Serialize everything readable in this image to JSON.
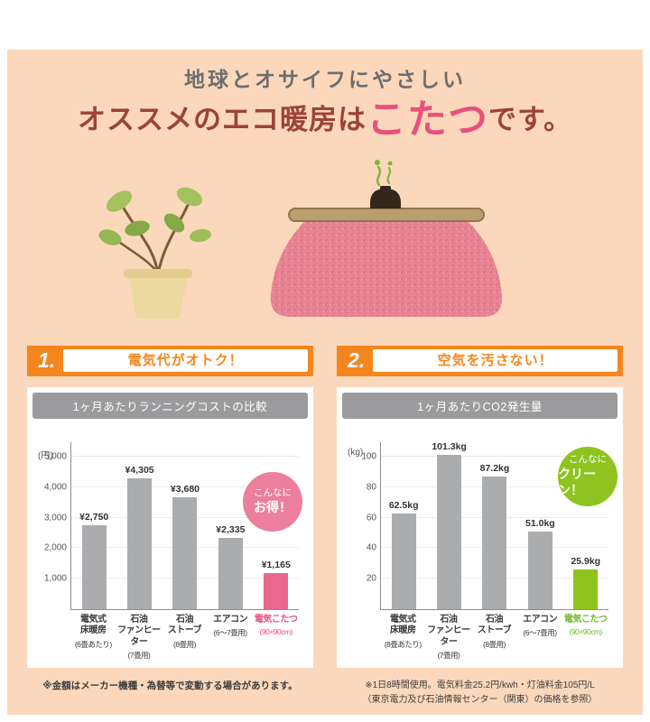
{
  "header": {
    "line1": "地球とオサイフにやさしい",
    "line2_pre": "オススメのエコ暖房は",
    "line2_highlight": "こたつ",
    "line2_post": "です。"
  },
  "sections": [
    {
      "number": "1.",
      "heading": "電気代がオトク！",
      "badge_line1": "こんなに",
      "badge_line2": "お得！",
      "footnote": "※金額はメーカー機種・為替等で変動する場合があります。"
    },
    {
      "number": "2.",
      "heading": "空気を汚さない！",
      "badge_line1": "こんなに",
      "badge_line2": "クリーン！",
      "footnote": "※1日8時間使用。電気料金25.2円/kwh・灯油料金105円/L\n（東京電力及び石油情報センター（関東）の価格を参照）"
    }
  ],
  "colors": {
    "background": "#fbd8bb",
    "banner_orange": "#f5861d",
    "title_red": "#9c4337",
    "kotatsu_pink": "#e8517e",
    "bar_gray": "#abacae",
    "bar_pink": "#e9688f",
    "bar_green": "#8fc31f"
  },
  "chart_data": [
    {
      "type": "bar",
      "title": "1ヶ月あたりランニングコストの比較",
      "unit_label": "(円)",
      "categories": [
        "電気式\n床暖房",
        "石油\nファンヒーター",
        "石油\nストーブ",
        "エアコン",
        "電気こたつ"
      ],
      "category_subs": [
        "(6畳あたり)",
        "(7畳用)",
        "(8畳用)",
        "(6〜7畳用)",
        "(90×90cm)"
      ],
      "values": [
        2750,
        4305,
        3680,
        2335,
        1165
      ],
      "value_labels": [
        "¥2,750",
        "¥4,305",
        "¥3,680",
        "¥2,335",
        "¥1,165"
      ],
      "yticks": [
        5000,
        4000,
        3000,
        2000,
        1000
      ],
      "ytick_labels": [
        "5,000",
        "4,000",
        "3,000",
        "2,000",
        "1,000"
      ],
      "ylim": [
        0,
        5500
      ],
      "xlabel": "",
      "ylabel": "円",
      "bar_colors": [
        "#abacae",
        "#abacae",
        "#abacae",
        "#abacae",
        "#e9688f"
      ],
      "highlight_index": 4,
      "highlight_color": "#e8517e",
      "legend": "none",
      "grid": "horizontal"
    },
    {
      "type": "bar",
      "title": "1ヶ月あたりCO2発生量",
      "unit_label": "(kg)",
      "categories": [
        "電気式\n床暖房",
        "石油\nファンヒーター",
        "石油\nストーブ",
        "エアコン",
        "電気こたつ"
      ],
      "category_subs": [
        "(8畳あたり)",
        "(7畳用)",
        "(8畳用)",
        "(6〜7畳用)",
        "(90×90cm)"
      ],
      "values": [
        62.5,
        101.3,
        87.2,
        51.0,
        25.9
      ],
      "value_labels": [
        "62.5kg",
        "101.3kg",
        "87.2kg",
        "51.0kg",
        "25.9kg"
      ],
      "yticks": [
        100,
        80,
        60,
        40,
        20
      ],
      "ytick_labels": [
        "100",
        "80",
        "60",
        "40",
        "20"
      ],
      "ylim": [
        0,
        110
      ],
      "xlabel": "",
      "ylabel": "kg",
      "bar_colors": [
        "#abacae",
        "#abacae",
        "#abacae",
        "#abacae",
        "#8fc31f"
      ],
      "highlight_index": 4,
      "highlight_color": "#76b82a",
      "legend": "none",
      "grid": "horizontal"
    }
  ]
}
